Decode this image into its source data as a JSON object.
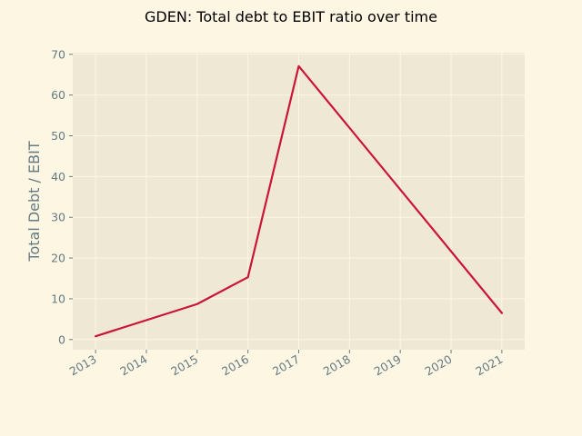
{
  "chart_data": {
    "type": "line",
    "title": "GDEN: Total debt to EBIT ratio over time",
    "xlabel": "",
    "ylabel": "Total Debt / EBIT",
    "x": [
      "2013",
      "2014",
      "2015",
      "2016",
      "2017",
      "2018",
      "2019",
      "2020",
      "2021"
    ],
    "series": [
      {
        "name": "",
        "x": [
          2013,
          2015,
          2016,
          2017,
          2021
        ],
        "values": [
          0.8,
          8.7,
          15.3,
          67.1,
          6.5
        ]
      }
    ],
    "xlim": [
      2012.55,
      2021.45
    ],
    "ylim": [
      -2.5,
      70.4
    ],
    "yticks": [
      0,
      10,
      20,
      30,
      40,
      50,
      60,
      70
    ],
    "grid": true,
    "legend": "none",
    "colors": {
      "background": "#fdf6e3",
      "plot_area": "#eee8d5",
      "line": "#cb1537",
      "text": "#657b83",
      "grid": "#fdf6e3"
    }
  }
}
